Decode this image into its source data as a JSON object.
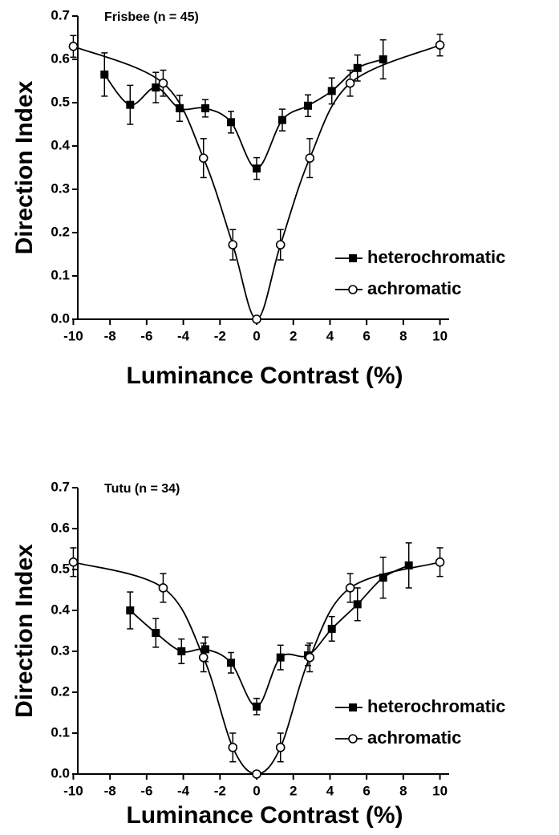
{
  "chart_data": [
    {
      "type": "line",
      "title": "Frisbee (n = 45)",
      "xlabel": "Luminance Contrast (%)",
      "ylabel": "Direction Index",
      "xlim": [
        -10.5,
        10.5
      ],
      "xticks": [
        -10,
        -8,
        -6,
        -4,
        -2,
        0,
        2,
        4,
        6,
        8,
        10
      ],
      "ylim": [
        0,
        0.7
      ],
      "yticks": [
        {
          "value": 0,
          "label": "0.0"
        },
        0.1,
        0.2,
        0.3,
        0.4,
        0.5,
        0.6,
        0.7
      ],
      "legend": "lower right",
      "series": [
        {
          "name": "heterochromatic",
          "color": "#000000",
          "marker": "square",
          "x": [
            -8.3,
            -6.9,
            -5.5,
            -4.2,
            -2.8,
            -1.4,
            0,
            1.4,
            2.8,
            4.1,
            5.5,
            6.9
          ],
          "values": [
            0.565,
            0.495,
            0.535,
            0.487,
            0.487,
            0.455,
            0.348,
            0.46,
            0.493,
            0.527,
            0.58,
            0.6
          ],
          "errors": [
            0.05,
            0.045,
            0.035,
            0.03,
            0.02,
            0.025,
            0.025,
            0.025,
            0.025,
            0.03,
            0.03,
            0.045
          ]
        },
        {
          "name": "achromatic",
          "color": "#000000",
          "marker": "open-circle",
          "x": [
            -10,
            -5.1,
            -2.9,
            -1.3,
            0,
            1.3,
            2.9,
            5.1,
            10
          ],
          "values": [
            0.63,
            0.545,
            0.372,
            0.172,
            0,
            0.172,
            0.372,
            0.545,
            0.633
          ],
          "errors": [
            0.025,
            0.03,
            0.045,
            0.035,
            0,
            0.035,
            0.045,
            0.03,
            0.025
          ]
        }
      ]
    },
    {
      "type": "line",
      "title": "Tutu (n = 34)",
      "xlabel": "Luminance Contrast (%)",
      "ylabel": "Direction Index",
      "xlim": [
        -10.5,
        10.5
      ],
      "xticks": [
        -10,
        -8,
        -6,
        -4,
        -2,
        0,
        2,
        4,
        6,
        8,
        10
      ],
      "ylim": [
        0,
        0.7
      ],
      "yticks": [
        {
          "value": 0,
          "label": "0.0"
        },
        0.1,
        0.2,
        0.3,
        0.4,
        0.5,
        0.6,
        0.7
      ],
      "legend": "lower right",
      "series": [
        {
          "name": "heterochromatic",
          "color": "#000000",
          "marker": "square",
          "x": [
            -6.9,
            -5.5,
            -4.1,
            -2.8,
            -1.4,
            0,
            1.3,
            2.8,
            4.1,
            5.5,
            6.9,
            8.3
          ],
          "values": [
            0.4,
            0.345,
            0.3,
            0.305,
            0.272,
            0.165,
            0.285,
            0.29,
            0.355,
            0.415,
            0.48,
            0.51
          ],
          "errors": [
            0.045,
            0.035,
            0.03,
            0.03,
            0.025,
            0.02,
            0.03,
            0.025,
            0.03,
            0.04,
            0.05,
            0.055
          ]
        },
        {
          "name": "achromatic",
          "color": "#000000",
          "marker": "open-circle",
          "x": [
            -10,
            -5.1,
            -2.9,
            -1.3,
            0,
            1.3,
            2.9,
            5.1,
            10
          ],
          "values": [
            0.518,
            0.455,
            0.285,
            0.065,
            0,
            0.065,
            0.285,
            0.455,
            0.518
          ],
          "errors": [
            0.035,
            0.035,
            0.035,
            0.035,
            0,
            0.035,
            0.035,
            0.035,
            0.035
          ]
        }
      ]
    }
  ]
}
